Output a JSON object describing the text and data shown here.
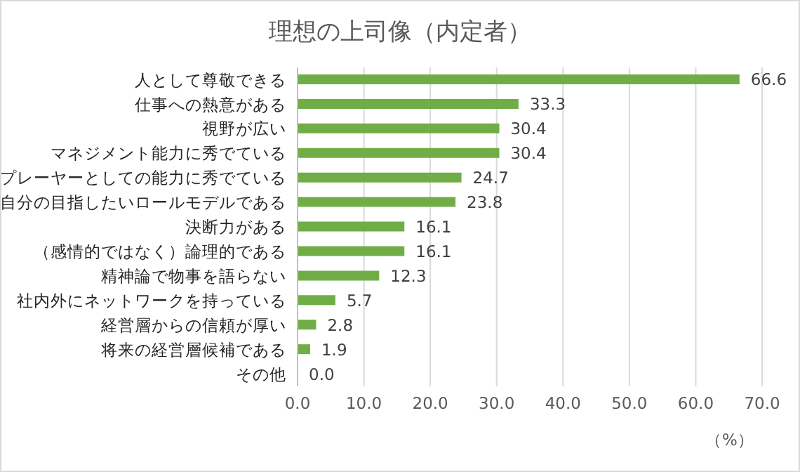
{
  "chart_data": {
    "type": "bar",
    "orientation": "horizontal",
    "title": "理想の上司像（内定者）",
    "xlabel": "（%）",
    "categories": [
      "人として尊敬できる",
      "仕事への熱意がある",
      "視野が広い",
      "マネジメント能力に秀でている",
      "プレーヤーとしての能力に秀でている",
      "自分の目指したいロールモデルである",
      "決断力がある",
      "（感情的ではなく）論理的である",
      "精神論で物事を語らない",
      "社内外にネットワークを持っている",
      "経営層からの信頼が厚い",
      "将来の経営層候補である",
      "その他"
    ],
    "values": [
      66.6,
      33.3,
      30.4,
      30.4,
      24.7,
      23.8,
      16.1,
      16.1,
      12.3,
      5.7,
      2.8,
      1.9,
      0.0
    ],
    "value_labels": [
      "66.6",
      "33.3",
      "30.4",
      "30.4",
      "24.7",
      "23.8",
      "16.1",
      "16.1",
      "12.3",
      "5.7",
      "2.8",
      "1.9",
      "0.0"
    ],
    "color": "#70ad47",
    "xlim": [
      0,
      70
    ],
    "xticks": [
      {
        "value": 0,
        "label": "0.0"
      },
      {
        "value": 10,
        "label": "10.0"
      },
      {
        "value": 20,
        "label": "20.0"
      },
      {
        "value": 30,
        "label": "30.0"
      },
      {
        "value": 40,
        "label": "40.0"
      },
      {
        "value": 50,
        "label": "50.0"
      },
      {
        "value": 60,
        "label": "60.0"
      },
      {
        "value": 70,
        "label": "70.0"
      }
    ],
    "grid": "x"
  }
}
